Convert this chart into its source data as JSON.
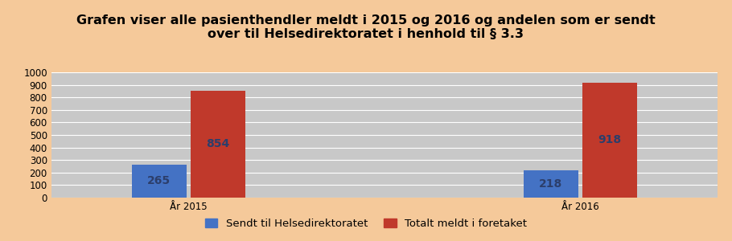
{
  "title": "Grafen viser alle pasienthendler meldt i 2015 og 2016 og andelen som er sendt\nover til Helsedirektoratet i henhold til § 3.3",
  "categories": [
    "År 2015",
    "År 2016"
  ],
  "series": [
    {
      "label": "Sendt til Helsedirektoratet",
      "values": [
        265,
        218
      ],
      "color": "#4472C4"
    },
    {
      "label": "Totalt meldt i foretaket",
      "values": [
        854,
        918
      ],
      "color": "#C0392B"
    }
  ],
  "ylim": [
    0,
    1000
  ],
  "yticks": [
    0,
    100,
    200,
    300,
    400,
    500,
    600,
    700,
    800,
    900,
    1000
  ],
  "background_color": "#F5C99A",
  "plot_bg_color": "#C8C8C8",
  "bar_label_color": "#2C3E6B",
  "title_fontsize": 11.5,
  "label_fontsize": 10,
  "tick_fontsize": 8.5,
  "legend_fontsize": 9.5,
  "bar_width": 0.28,
  "group_positions": [
    0.25,
    0.75
  ]
}
